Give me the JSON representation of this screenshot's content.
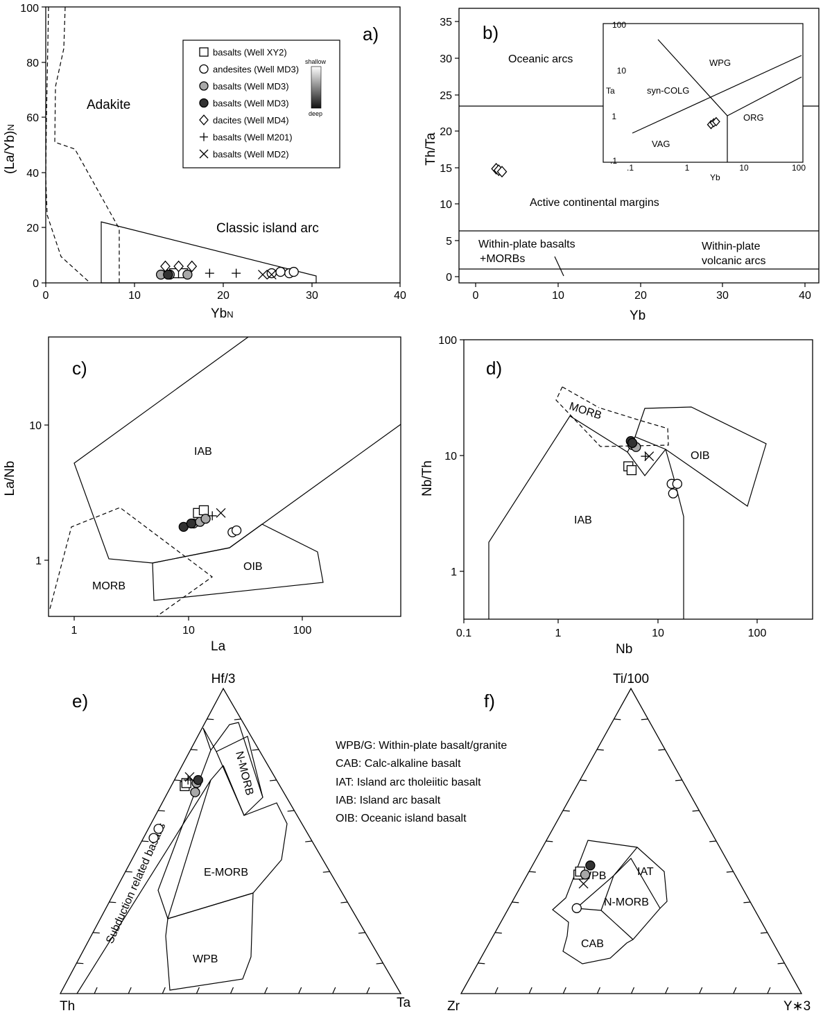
{
  "panels": {
    "a": {
      "letter": "a)",
      "xlabel": "Yb",
      "xlabel_sub": "N",
      "ylabel": "(La/Yb)",
      "ylabel_sub": "N",
      "xticks": [
        "0",
        "10",
        "20",
        "30",
        "40"
      ],
      "yticks": [
        "0",
        "20",
        "40",
        "60",
        "80",
        "100"
      ],
      "regions": {
        "adakite": "Adakite",
        "arc": "Classic island arc"
      }
    },
    "b": {
      "letter": "b)",
      "xlabel": "Yb",
      "ylabel": "Th/Ta",
      "xticks": [
        "0",
        "10",
        "20",
        "30",
        "40"
      ],
      "yticks": [
        "0",
        "5",
        "10",
        "15",
        "20",
        "25",
        "30",
        "35"
      ],
      "regions": {
        "oceanic": "Oceanic arcs",
        "active": "Active continental margins",
        "wpb1": "Within-plate basalts",
        "wpb2": "+MORBs",
        "wpv1": "Within-plate",
        "wpv2": "volcanic arcs"
      },
      "inset": {
        "xlabel": "Yb",
        "ylabel": "Ta",
        "xticks": [
          ".1",
          "1",
          "10",
          "100"
        ],
        "yticks": [
          ".1",
          "1",
          "10",
          "100"
        ],
        "regions": {
          "wpg": "WPG",
          "syn": "syn-COLG",
          "org": "ORG",
          "vag": "VAG"
        }
      }
    },
    "c": {
      "letter": "c)",
      "xlabel": "La",
      "ylabel": "La/Nb",
      "xticks": [
        "1",
        "10",
        "100"
      ],
      "yticks": [
        "1",
        "10"
      ],
      "regions": {
        "iab": "IAB",
        "oib": "OIB",
        "morb": "MORB"
      }
    },
    "d": {
      "letter": "d)",
      "xlabel": "Nb",
      "ylabel": "Nb/Th",
      "xticks": [
        "0.1",
        "1",
        "10",
        "100"
      ],
      "yticks": [
        "1",
        "10",
        "100"
      ],
      "regions": {
        "morb": "MORB",
        "oib": "OIB",
        "iab": "IAB"
      }
    },
    "e": {
      "letter": "e)",
      "apex_top": "Hf/3",
      "apex_left": "Th",
      "apex_right": "Ta",
      "regions": {
        "nmorb": "N-MORB",
        "emorb": "E-MORB",
        "wpb": "WPB",
        "sub": "Subduction related basalts"
      }
    },
    "f": {
      "letter": "f)",
      "apex_top": "Ti/100",
      "apex_left": "Zr",
      "apex_right": "Y∗3",
      "regions": {
        "wpb": "WPB",
        "iat": "IAT",
        "nmorb": "N-MORB",
        "cab": "CAB"
      }
    }
  },
  "legend": {
    "items": [
      {
        "label": "basalts (Well XY2)",
        "symbol": "square-open"
      },
      {
        "label": "andesites (Well MD3)",
        "symbol": "circle-open"
      },
      {
        "label": "basalts (Well MD3)",
        "symbol": "circle-gray"
      },
      {
        "label": "basalts (Well MD3)",
        "symbol": "circle-black"
      },
      {
        "label": "dacites (Well MD4)",
        "symbol": "diamond-open"
      },
      {
        "label": "basalts (Well M201)",
        "symbol": "plus"
      },
      {
        "label": "basalts (Well MD2)",
        "symbol": "cross"
      }
    ],
    "depth_top": "shallow",
    "depth_bottom": "deep"
  },
  "abbreviations": [
    "WPB/G: Within-plate basalt/granite",
    "CAB: Calc-alkaline basalt",
    "IAT: Island arc tholeiitic basalt",
    "IAB: Island arc basalt",
    "OIB: Oceanic island basalt"
  ],
  "colors": {
    "gray_fill": "#a8a8a8",
    "black_fill": "#333333",
    "line": "#000000"
  },
  "chart_data": [
    {
      "panel": "a",
      "type": "scatter",
      "xlabel": "YbN",
      "ylabel": "(La/Yb)N",
      "xlim": [
        0,
        40
      ],
      "ylim": [
        0,
        100
      ],
      "series": [
        {
          "name": "basalts (Well XY2)",
          "symbol": "square-open",
          "points": [
            [
              14.5,
              3.5
            ],
            [
              15.5,
              3.5
            ]
          ]
        },
        {
          "name": "andesites (Well MD3)",
          "symbol": "circle-open",
          "points": [
            [
              25.5,
              3.5
            ],
            [
              26.5,
              4
            ],
            [
              27.5,
              3.5
            ],
            [
              28,
              4
            ]
          ]
        },
        {
          "name": "basalts (Well MD3)",
          "symbol": "circle-gray",
          "points": [
            [
              13,
              3
            ],
            [
              14,
              3
            ],
            [
              16,
              3
            ]
          ]
        },
        {
          "name": "basalts (Well MD3)",
          "symbol": "circle-black",
          "points": [
            [
              13.8,
              3
            ]
          ]
        },
        {
          "name": "dacites (Well MD4)",
          "symbol": "diamond-open",
          "points": [
            [
              13.5,
              6
            ],
            [
              15,
              6
            ],
            [
              16.5,
              6
            ]
          ]
        },
        {
          "name": "basalts (Well M201)",
          "symbol": "plus",
          "points": [
            [
              18.5,
              3.5
            ],
            [
              21.5,
              3.5
            ]
          ]
        },
        {
          "name": "basalts (Well MD2)",
          "symbol": "cross",
          "points": [
            [
              24.5,
              3
            ],
            [
              25.5,
              3
            ]
          ]
        }
      ]
    },
    {
      "panel": "b",
      "type": "scatter",
      "xlabel": "Yb",
      "ylabel": "Th/Ta",
      "xlim": [
        0,
        40
      ],
      "ylim": [
        0,
        35
      ],
      "series": [
        {
          "name": "dacites (Well MD4)",
          "symbol": "diamond-open",
          "points": [
            [
              2.5,
              14.8
            ],
            [
              2.8,
              14.6
            ],
            [
              3.2,
              14.4
            ]
          ]
        }
      ],
      "inset": {
        "xlabel": "Yb",
        "ylabel": "Ta",
        "xscale": "log",
        "yscale": "log",
        "xlim": [
          0.1,
          100
        ],
        "ylim": [
          0.1,
          100
        ],
        "series": [
          {
            "name": "dacites (Well MD4)",
            "symbol": "diamond-open",
            "points": [
              [
                2.6,
                0.62
              ],
              [
                2.9,
                0.68
              ],
              [
                3.2,
                0.72
              ]
            ]
          }
        ]
      }
    },
    {
      "panel": "c",
      "type": "scatter",
      "xlabel": "La",
      "ylabel": "La/Nb",
      "xscale": "log",
      "yscale": "log",
      "xlim": [
        0.6,
        700
      ],
      "ylim": [
        0.4,
        40
      ],
      "series": [
        {
          "name": "basalts (Well XY2)",
          "symbol": "square-open",
          "points": [
            [
              12,
              2.2
            ],
            [
              13.5,
              2.3
            ]
          ]
        },
        {
          "name": "andesites (Well MD3)",
          "symbol": "circle-open",
          "points": [
            [
              24,
              1.6
            ],
            [
              26,
              1.65
            ]
          ]
        },
        {
          "name": "basalts (Well MD3)",
          "symbol": "circle-gray",
          "points": [
            [
              11,
              1.85
            ],
            [
              12.5,
              1.9
            ],
            [
              14,
              2
            ]
          ]
        },
        {
          "name": "basalts (Well MD3)",
          "symbol": "circle-black",
          "points": [
            [
              9,
              1.75
            ],
            [
              10.5,
              1.85
            ]
          ]
        },
        {
          "name": "basalts (Well M201)",
          "symbol": "plus",
          "points": [
            [
              16,
              2.1
            ]
          ]
        },
        {
          "name": "basalts (Well MD2)",
          "symbol": "cross",
          "points": [
            [
              19,
              2.2
            ]
          ]
        }
      ]
    },
    {
      "panel": "d",
      "type": "scatter",
      "xlabel": "Nb",
      "ylabel": "Nb/Th",
      "xscale": "log",
      "yscale": "log",
      "xlim": [
        0.1,
        400
      ],
      "ylim": [
        0.4,
        100
      ],
      "series": [
        {
          "name": "basalts (Well XY2)",
          "symbol": "square-open",
          "points": [
            [
              5,
              8.2
            ],
            [
              5.4,
              7.6
            ]
          ]
        },
        {
          "name": "andesites (Well MD3)",
          "symbol": "circle-open",
          "points": [
            [
              14,
              5.8
            ],
            [
              16,
              5.8
            ],
            [
              14.5,
              4.8
            ]
          ]
        },
        {
          "name": "basalts (Well MD3)",
          "symbol": "circle-gray",
          "points": [
            [
              5.5,
              12.5
            ],
            [
              6,
              12
            ]
          ]
        },
        {
          "name": "basalts (Well MD3)",
          "symbol": "circle-black",
          "points": [
            [
              5.3,
              13.5
            ],
            [
              5.5,
              13
            ]
          ]
        },
        {
          "name": "basalts (Well M201)",
          "symbol": "plus",
          "points": [
            [
              7.5,
              10
            ]
          ]
        },
        {
          "name": "basalts (Well MD2)",
          "symbol": "cross",
          "points": [
            [
              8.2,
              10
            ]
          ]
        }
      ]
    },
    {
      "panel": "e",
      "type": "ternary",
      "axes": [
        "Hf/3",
        "Th",
        "Ta"
      ],
      "series": [
        {
          "name": "basalts (Well XY2)",
          "symbol": "square-open",
          "points": [
            [
              0.68,
              0.28,
              0.04
            ],
            [
              0.69,
              0.27,
              0.04
            ]
          ]
        },
        {
          "name": "andesites (Well MD3)",
          "symbol": "circle-open",
          "points": [
            [
              0.54,
              0.43,
              0.03
            ],
            [
              0.51,
              0.46,
              0.03
            ]
          ]
        },
        {
          "name": "basalts (Well MD3)",
          "symbol": "circle-gray",
          "points": [
            [
              0.69,
              0.24,
              0.07
            ],
            [
              0.66,
              0.26,
              0.08
            ]
          ]
        },
        {
          "name": "basalts (Well MD3)",
          "symbol": "circle-black",
          "points": [
            [
              0.7,
              0.23,
              0.07
            ]
          ]
        },
        {
          "name": "basalts (Well M201)",
          "symbol": "plus",
          "points": [
            [
              0.7,
              0.26,
              0.04
            ]
          ]
        },
        {
          "name": "basalts (Well MD2)",
          "symbol": "cross",
          "points": [
            [
              0.71,
              0.25,
              0.04
            ]
          ]
        }
      ]
    },
    {
      "panel": "f",
      "type": "ternary",
      "axes": [
        "Ti/100",
        "Zr",
        "Y*3"
      ],
      "series": [
        {
          "name": "basalts (Well XY2)",
          "symbol": "square-open",
          "points": [
            [
              0.39,
              0.46,
              0.15
            ],
            [
              0.4,
              0.45,
              0.15
            ]
          ]
        },
        {
          "name": "andesites (Well MD3)",
          "symbol": "circle-open",
          "points": [
            [
              0.28,
              0.52,
              0.2
            ]
          ]
        },
        {
          "name": "basalts (Well MD3)",
          "symbol": "circle-gray",
          "points": [
            [
              0.39,
              0.44,
              0.17
            ]
          ]
        },
        {
          "name": "basalts (Well MD3)",
          "symbol": "circle-black",
          "points": [
            [
              0.42,
              0.41,
              0.17
            ]
          ]
        },
        {
          "name": "basalts (Well MD2)",
          "symbol": "cross",
          "points": [
            [
              0.36,
              0.46,
              0.18
            ]
          ]
        }
      ]
    }
  ]
}
